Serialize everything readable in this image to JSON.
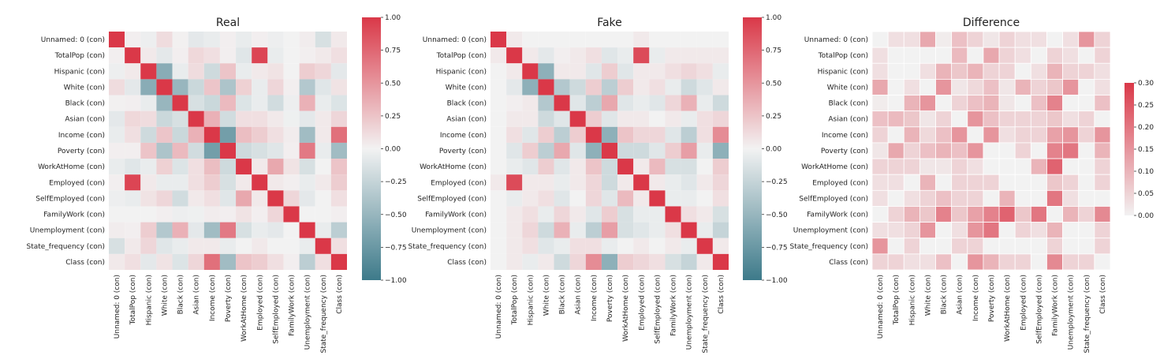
{
  "chart_data": [
    {
      "type": "heatmap",
      "title": "Real",
      "variables": [
        "Unnamed: 0 (con)",
        "TotalPop (con)",
        "Hispanic (con)",
        "White (con)",
        "Black (con)",
        "Asian (con)",
        "Income (con)",
        "Poverty (con)",
        "WorkAtHome (con)",
        "Employed (con)",
        "SelfEmployed (con)",
        "FamilyWork (con)",
        "Unemployment (con)",
        "State_frequency (con)",
        "Class (con)"
      ],
      "colorbar": {
        "min": -1.0,
        "max": 1.0,
        "ticks": [
          1.0,
          0.75,
          0.5,
          0.25,
          0.0,
          -0.25,
          -0.5,
          -0.75,
          -1.0
        ],
        "tick_labels": [
          "1.00",
          "0.75",
          "0.50",
          "0.25",
          "0.00",
          "−0.25",
          "−0.50",
          "−0.75",
          "−1.00"
        ],
        "colormap": "diverging-teal-red"
      },
      "values": [
        [
          1.0,
          0.02,
          -0.03,
          0.12,
          0.01,
          -0.08,
          -0.05,
          0.02,
          -0.05,
          0.02,
          -0.03,
          0.0,
          0.03,
          -0.15,
          0.05
        ],
        [
          0.02,
          1.0,
          0.05,
          -0.08,
          0.02,
          0.14,
          0.1,
          0.02,
          -0.1,
          0.93,
          -0.05,
          0.0,
          0.02,
          0.05,
          0.1
        ],
        [
          -0.03,
          0.05,
          1.0,
          -0.58,
          -0.05,
          0.12,
          -0.2,
          0.25,
          -0.05,
          0.05,
          0.08,
          0.0,
          0.2,
          0.15,
          -0.08
        ],
        [
          0.12,
          -0.08,
          -0.58,
          1.0,
          -0.5,
          -0.22,
          0.24,
          -0.38,
          0.18,
          -0.05,
          0.15,
          0.02,
          -0.35,
          -0.1,
          0.08
        ],
        [
          0.01,
          0.02,
          -0.05,
          -0.5,
          1.0,
          -0.15,
          -0.22,
          0.3,
          -0.12,
          -0.05,
          -0.18,
          -0.03,
          0.35,
          -0.05,
          -0.12
        ],
        [
          -0.08,
          0.14,
          0.12,
          -0.22,
          -0.15,
          1.0,
          0.35,
          -0.18,
          0.1,
          0.1,
          0.05,
          -0.02,
          -0.08,
          0.05,
          0.15
        ],
        [
          -0.05,
          0.1,
          -0.2,
          0.24,
          -0.22,
          0.35,
          1.0,
          -0.7,
          0.28,
          0.2,
          0.1,
          0.03,
          -0.45,
          0.05,
          0.7
        ],
        [
          0.02,
          0.02,
          0.25,
          -0.38,
          0.3,
          -0.18,
          -0.7,
          1.0,
          -0.2,
          -0.15,
          -0.1,
          0.02,
          0.65,
          -0.05,
          -0.45
        ],
        [
          -0.05,
          -0.1,
          -0.05,
          0.18,
          -0.12,
          0.1,
          0.28,
          -0.2,
          1.0,
          0.05,
          0.4,
          0.08,
          -0.15,
          0.0,
          0.25
        ],
        [
          0.02,
          0.93,
          0.05,
          -0.05,
          -0.05,
          0.1,
          0.2,
          -0.15,
          0.05,
          1.0,
          0.05,
          0.02,
          -0.05,
          0.05,
          0.2
        ],
        [
          -0.03,
          -0.05,
          0.08,
          0.15,
          -0.18,
          0.05,
          0.1,
          -0.1,
          0.4,
          0.05,
          1.0,
          0.15,
          -0.08,
          0.0,
          0.1
        ],
        [
          0.0,
          0.0,
          0.0,
          0.02,
          -0.03,
          -0.02,
          0.03,
          0.02,
          0.08,
          0.02,
          0.15,
          1.0,
          0.0,
          0.0,
          0.02
        ],
        [
          0.03,
          0.02,
          0.2,
          -0.35,
          0.35,
          -0.08,
          -0.45,
          0.65,
          -0.15,
          -0.05,
          -0.08,
          0.0,
          1.0,
          -0.05,
          -0.3
        ],
        [
          -0.15,
          0.05,
          0.15,
          -0.1,
          -0.05,
          0.05,
          0.05,
          -0.05,
          0.0,
          0.05,
          0.0,
          0.0,
          -0.05,
          1.0,
          0.1
        ],
        [
          0.05,
          0.1,
          -0.08,
          0.08,
          -0.12,
          0.15,
          0.7,
          -0.45,
          0.25,
          0.2,
          0.1,
          0.02,
          -0.3,
          0.1,
          1.0
        ]
      ]
    },
    {
      "type": "heatmap",
      "title": "Fake",
      "variables": [
        "Unnamed: 0 (con)",
        "TotalPop (con)",
        "Hispanic (con)",
        "White (con)",
        "Black (con)",
        "Asian (con)",
        "Income (con)",
        "Poverty (con)",
        "WorkAtHome (con)",
        "Employed (con)",
        "SelfEmployed (con)",
        "FamilyWork (con)",
        "Unemployment (con)",
        "State_frequency (con)",
        "Class (con)"
      ],
      "colorbar": {
        "min": -1.0,
        "max": 1.0,
        "ticks": [
          1.0,
          0.75,
          0.5,
          0.25,
          0.0,
          -0.25,
          -0.5,
          -0.75,
          -1.0
        ],
        "tick_labels": [
          "1.00",
          "0.75",
          "0.50",
          "0.25",
          "0.00",
          "−0.25",
          "−0.50",
          "−0.75",
          "−1.00"
        ],
        "colormap": "diverging-teal-red"
      },
      "values": [
        [
          1.0,
          0.05,
          0.0,
          0.0,
          0.0,
          0.0,
          0.0,
          0.0,
          0.0,
          0.05,
          0.0,
          0.0,
          0.0,
          0.0,
          0.0
        ],
        [
          0.05,
          1.0,
          0.05,
          -0.08,
          0.02,
          0.05,
          0.1,
          -0.1,
          -0.05,
          0.9,
          -0.05,
          0.05,
          0.05,
          0.05,
          0.05
        ],
        [
          0.0,
          0.05,
          1.0,
          -0.55,
          0.05,
          0.05,
          -0.1,
          0.2,
          -0.1,
          0.05,
          0.05,
          0.1,
          0.15,
          0.1,
          -0.05
        ],
        [
          0.0,
          -0.08,
          -0.55,
          1.0,
          -0.35,
          -0.2,
          0.2,
          -0.3,
          0.2,
          0.05,
          0.1,
          -0.05,
          -0.2,
          -0.1,
          0.05
        ],
        [
          0.0,
          0.02,
          0.05,
          -0.35,
          1.0,
          -0.1,
          -0.3,
          0.4,
          -0.1,
          -0.05,
          -0.1,
          0.15,
          0.35,
          -0.05,
          -0.2
        ],
        [
          0.0,
          0.05,
          0.05,
          -0.2,
          -0.1,
          1.0,
          0.2,
          -0.1,
          0.05,
          0.05,
          0.0,
          0.05,
          -0.05,
          0.1,
          0.15
        ],
        [
          0.0,
          0.1,
          -0.1,
          0.2,
          -0.3,
          0.2,
          1.0,
          -0.55,
          0.25,
          0.15,
          0.15,
          -0.1,
          -0.3,
          0.1,
          0.55
        ],
        [
          0.0,
          -0.1,
          0.2,
          -0.3,
          0.4,
          -0.1,
          -0.55,
          1.0,
          -0.2,
          -0.2,
          -0.1,
          0.2,
          0.45,
          -0.05,
          -0.55
        ],
        [
          0.0,
          -0.05,
          -0.1,
          0.2,
          -0.1,
          0.05,
          0.25,
          -0.2,
          1.0,
          0.05,
          0.3,
          -0.15,
          -0.15,
          0.0,
          0.2
        ],
        [
          0.05,
          0.9,
          0.05,
          0.05,
          -0.05,
          0.05,
          0.15,
          -0.2,
          0.05,
          1.0,
          0.05,
          -0.05,
          -0.1,
          0.05,
          0.15
        ],
        [
          0.0,
          -0.05,
          0.05,
          0.1,
          -0.1,
          0.0,
          0.15,
          -0.1,
          0.3,
          0.05,
          1.0,
          -0.05,
          -0.05,
          0.0,
          0.1
        ],
        [
          0.0,
          0.05,
          0.1,
          -0.05,
          0.15,
          0.05,
          -0.1,
          0.2,
          -0.15,
          -0.05,
          -0.05,
          1.0,
          0.1,
          0.05,
          -0.15
        ],
        [
          0.0,
          0.05,
          0.15,
          -0.2,
          0.35,
          -0.05,
          -0.3,
          0.45,
          -0.15,
          -0.1,
          -0.05,
          0.1,
          1.0,
          -0.05,
          -0.25
        ],
        [
          0.0,
          0.05,
          0.1,
          -0.1,
          -0.05,
          0.1,
          0.1,
          -0.05,
          0.0,
          0.05,
          0.0,
          0.05,
          -0.05,
          1.0,
          0.05
        ],
        [
          0.0,
          0.05,
          -0.05,
          0.05,
          -0.2,
          0.15,
          0.55,
          -0.55,
          0.2,
          0.15,
          0.1,
          -0.15,
          -0.25,
          0.05,
          1.0
        ]
      ]
    },
    {
      "type": "heatmap",
      "title": "Difference",
      "variables": [
        "Unnamed: 0 (con)",
        "TotalPop (con)",
        "Hispanic (con)",
        "White (con)",
        "Black (con)",
        "Asian (con)",
        "Income (con)",
        "Poverty (con)",
        "WorkAtHome (con)",
        "Employed (con)",
        "SelfEmployed (con)",
        "FamilyWork (con)",
        "Unemployment (con)",
        "State_frequency (con)",
        "Class (con)"
      ],
      "colorbar": {
        "min": 0.0,
        "max": 0.3,
        "ticks": [
          0.3,
          0.25,
          0.2,
          0.15,
          0.1,
          0.05,
          0.0
        ],
        "tick_labels": [
          "0.30",
          "0.25",
          "0.20",
          "0.15",
          "0.10",
          "0.05",
          "0.00"
        ],
        "colormap": "sequential-red"
      },
      "values": [
        [
          0.0,
          0.03,
          0.03,
          0.12,
          0.01,
          0.08,
          0.05,
          0.02,
          0.05,
          0.03,
          0.03,
          0.0,
          0.03,
          0.15,
          0.05
        ],
        [
          0.03,
          0.0,
          0.0,
          0.0,
          0.0,
          0.09,
          0.0,
          0.12,
          0.05,
          0.03,
          0.0,
          0.05,
          0.03,
          0.0,
          0.05
        ],
        [
          0.03,
          0.0,
          0.0,
          0.03,
          0.1,
          0.07,
          0.1,
          0.05,
          0.05,
          0.0,
          0.03,
          0.1,
          0.05,
          0.05,
          0.03
        ],
        [
          0.12,
          0.0,
          0.03,
          0.0,
          0.15,
          0.02,
          0.04,
          0.08,
          0.02,
          0.1,
          0.05,
          0.07,
          0.15,
          0.0,
          0.03
        ],
        [
          0.01,
          0.0,
          0.1,
          0.15,
          0.0,
          0.05,
          0.08,
          0.1,
          0.02,
          0.0,
          0.08,
          0.18,
          0.0,
          0.0,
          0.08
        ],
        [
          0.08,
          0.09,
          0.07,
          0.02,
          0.05,
          0.0,
          0.15,
          0.08,
          0.05,
          0.05,
          0.05,
          0.07,
          0.03,
          0.05,
          0.0
        ],
        [
          0.05,
          0.0,
          0.1,
          0.04,
          0.08,
          0.15,
          0.0,
          0.15,
          0.03,
          0.05,
          0.05,
          0.13,
          0.15,
          0.05,
          0.15
        ],
        [
          0.02,
          0.12,
          0.05,
          0.08,
          0.1,
          0.08,
          0.15,
          0.0,
          0.0,
          0.05,
          0.0,
          0.18,
          0.2,
          0.0,
          0.1
        ],
        [
          0.05,
          0.05,
          0.05,
          0.02,
          0.02,
          0.05,
          0.03,
          0.0,
          0.0,
          0.0,
          0.1,
          0.23,
          0.0,
          0.0,
          0.05
        ],
        [
          0.03,
          0.03,
          0.0,
          0.1,
          0.0,
          0.05,
          0.05,
          0.05,
          0.0,
          0.0,
          0.0,
          0.07,
          0.05,
          0.0,
          0.05
        ],
        [
          0.03,
          0.0,
          0.03,
          0.05,
          0.08,
          0.05,
          0.05,
          0.0,
          0.1,
          0.0,
          0.0,
          0.2,
          0.03,
          0.0,
          0.0
        ],
        [
          0.0,
          0.05,
          0.1,
          0.07,
          0.18,
          0.07,
          0.13,
          0.18,
          0.23,
          0.07,
          0.2,
          0.0,
          0.1,
          0.05,
          0.17
        ],
        [
          0.03,
          0.03,
          0.05,
          0.15,
          0.0,
          0.03,
          0.15,
          0.2,
          0.0,
          0.05,
          0.03,
          0.1,
          0.0,
          0.0,
          0.05
        ],
        [
          0.15,
          0.0,
          0.05,
          0.0,
          0.0,
          0.05,
          0.05,
          0.0,
          0.0,
          0.0,
          0.0,
          0.05,
          0.0,
          0.0,
          0.05
        ],
        [
          0.05,
          0.05,
          0.03,
          0.03,
          0.08,
          0.0,
          0.15,
          0.1,
          0.05,
          0.05,
          0.0,
          0.17,
          0.05,
          0.05,
          0.0
        ]
      ]
    }
  ]
}
